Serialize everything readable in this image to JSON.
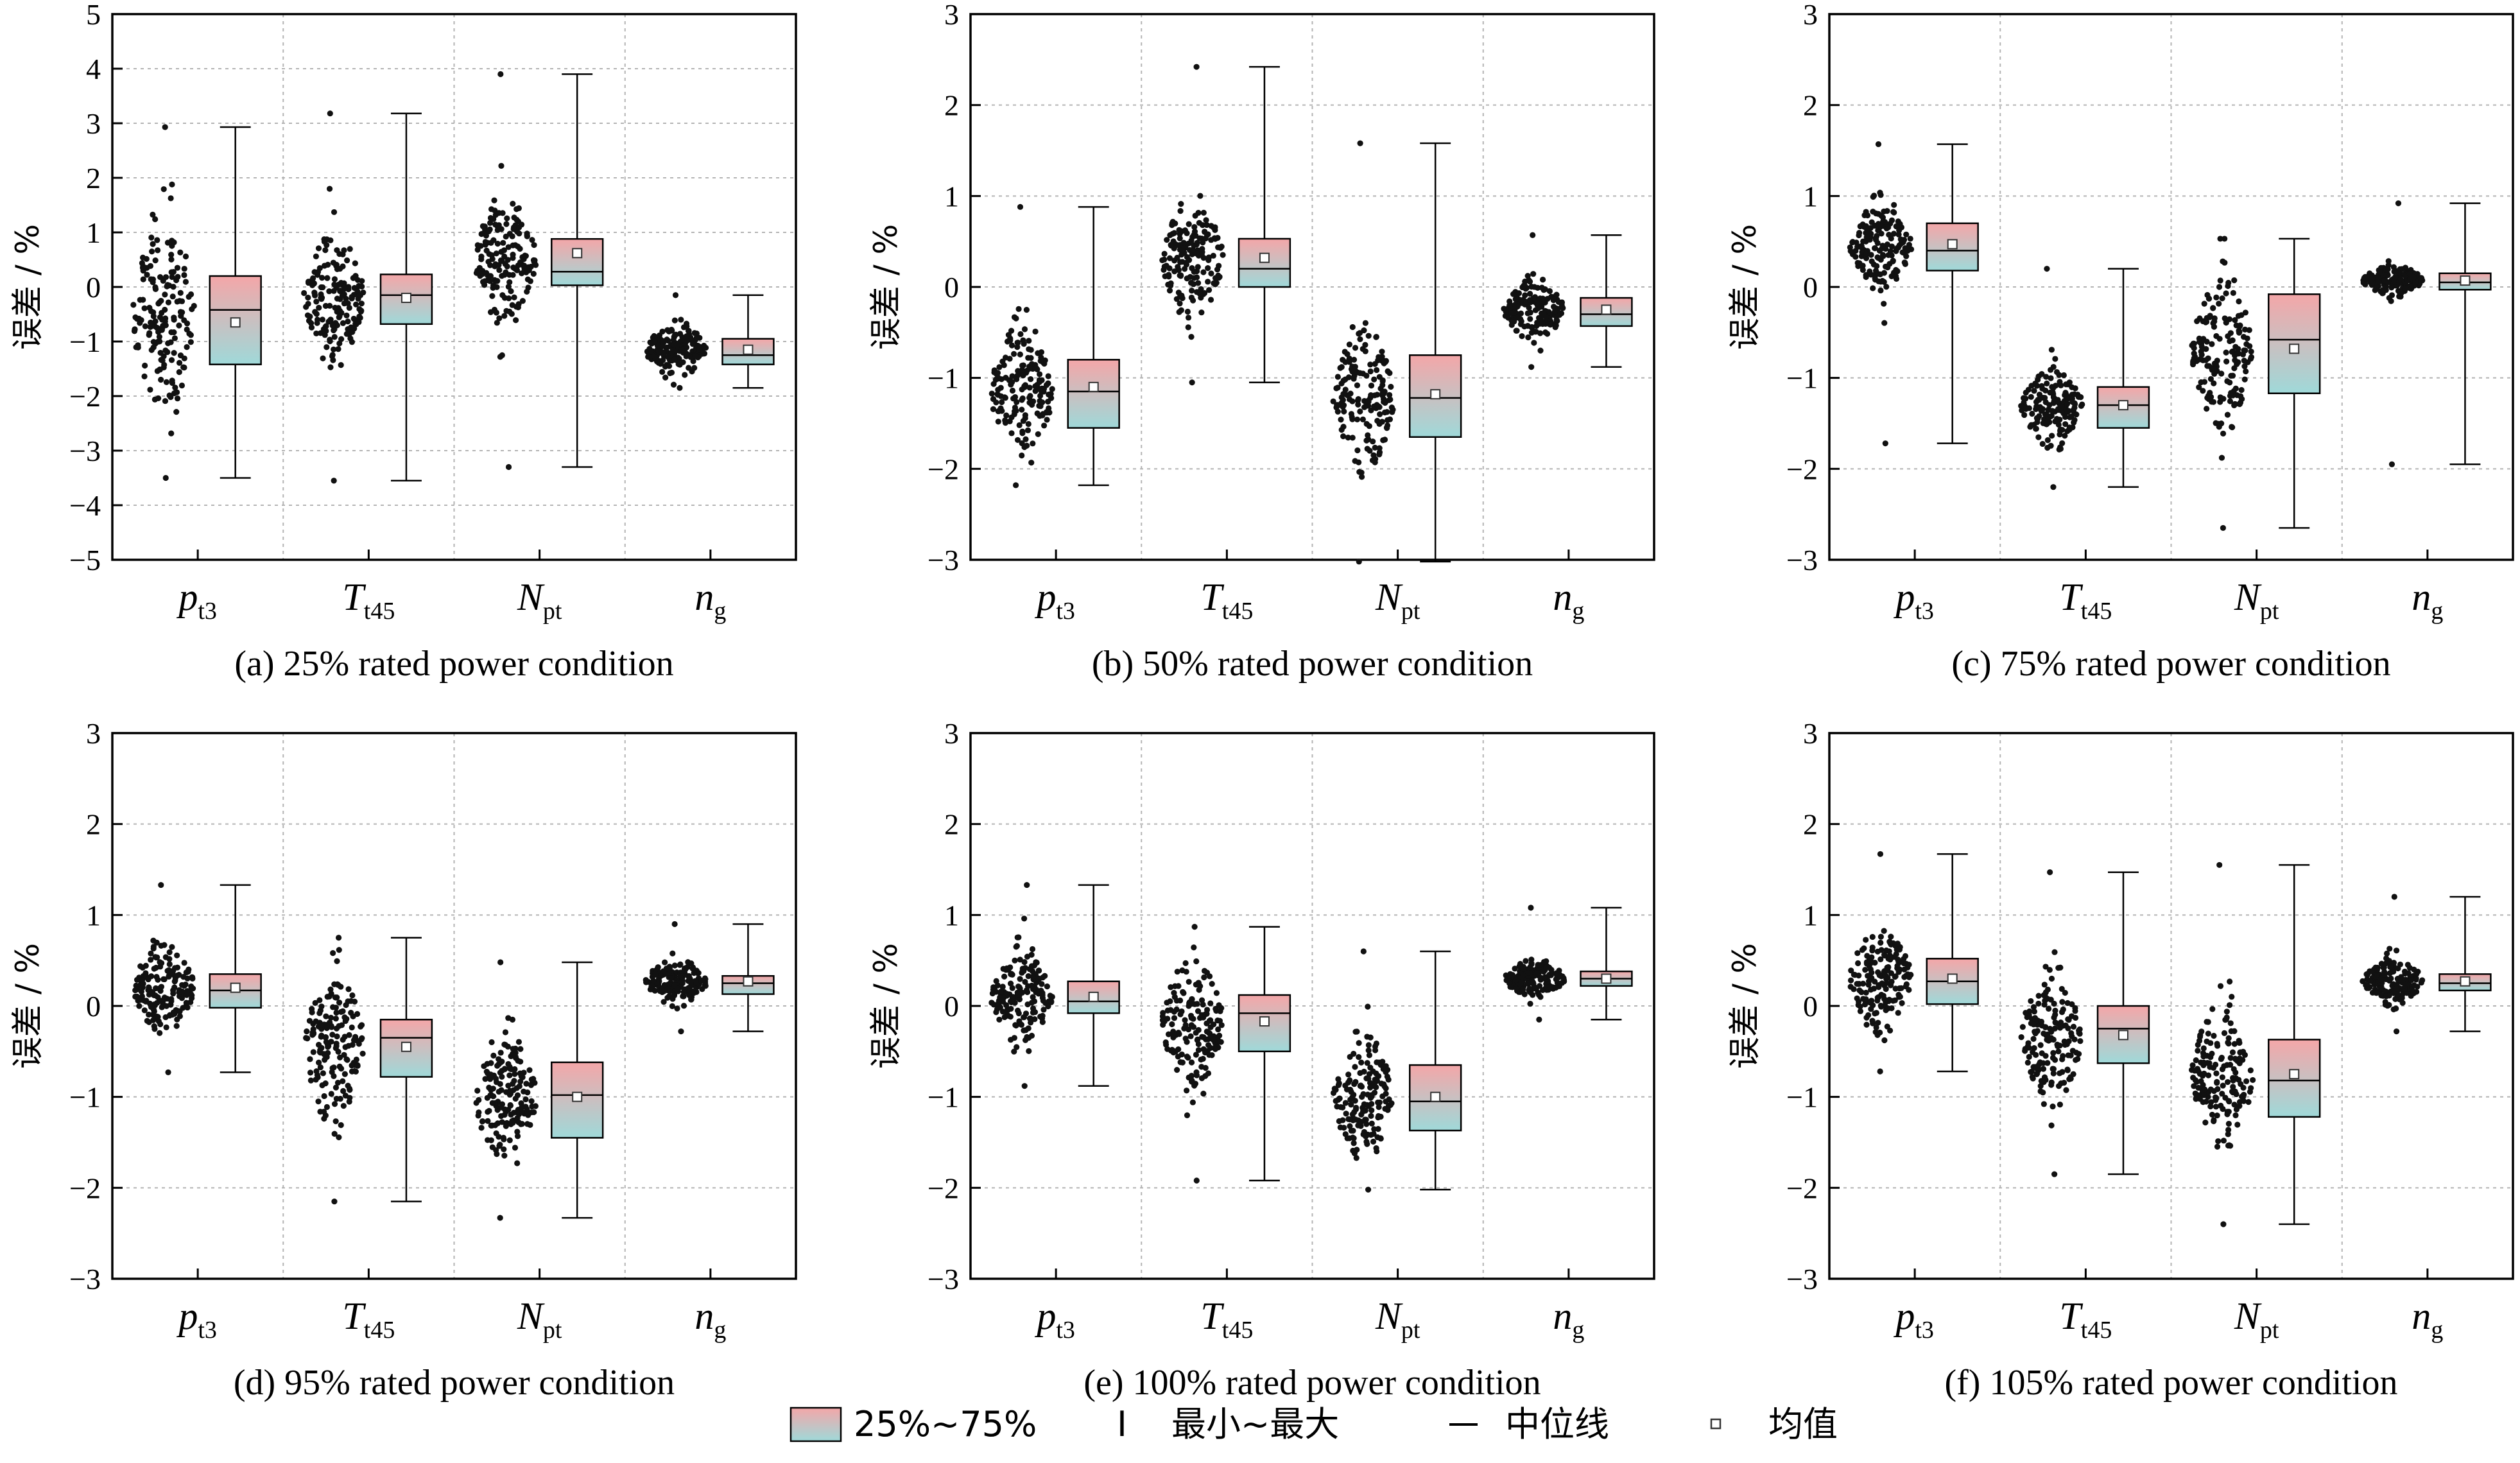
{
  "chart_data": [
    {
      "type": "box",
      "caption": "(a) 25% rated power condition",
      "ylabel": "误差 / %",
      "ylim": [
        -5,
        5
      ],
      "yticks": [
        -5,
        -4,
        -3,
        -2,
        -1,
        0,
        1,
        2,
        3,
        4,
        5
      ],
      "categories": [
        {
          "main": "p",
          "sub": "t3"
        },
        {
          "main": "T",
          "sub": "t45"
        },
        {
          "main": "N",
          "sub": "pt"
        },
        {
          "main": "n",
          "sub": "g"
        }
      ],
      "boxes": [
        {
          "min": -3.5,
          "q1": -1.42,
          "median": -0.42,
          "q3": 0.2,
          "max": 2.93,
          "mean": -0.65,
          "scatter_center": -0.5,
          "scatter_spread": 1.2
        },
        {
          "min": -3.55,
          "q1": -0.68,
          "median": -0.15,
          "q3": 0.23,
          "max": 3.18,
          "mean": -0.2,
          "scatter_center": -0.2,
          "scatter_spread": 0.7
        },
        {
          "min": -3.3,
          "q1": 0.03,
          "median": 0.28,
          "q3": 0.88,
          "max": 3.9,
          "mean": 0.62,
          "scatter_center": 0.5,
          "scatter_spread": 0.7
        },
        {
          "min": -1.85,
          "q1": -1.42,
          "median": -1.25,
          "q3": -0.95,
          "max": -0.15,
          "mean": -1.15,
          "scatter_center": -1.15,
          "scatter_spread": 0.3
        }
      ]
    },
    {
      "type": "box",
      "caption": "(b) 50% rated power condition",
      "ylabel": "误差 / %",
      "ylim": [
        -3,
        3
      ],
      "yticks": [
        -3,
        -2,
        -1,
        0,
        1,
        2,
        3
      ],
      "categories": [
        {
          "main": "p",
          "sub": "t3"
        },
        {
          "main": "T",
          "sub": "t45"
        },
        {
          "main": "N",
          "sub": "pt"
        },
        {
          "main": "n",
          "sub": "g"
        }
      ],
      "boxes": [
        {
          "min": -2.18,
          "q1": -1.55,
          "median": -1.15,
          "q3": -0.8,
          "max": 0.88,
          "mean": -1.1,
          "scatter_center": -1.15,
          "scatter_spread": 0.45
        },
        {
          "min": -1.05,
          "q1": 0.0,
          "median": 0.2,
          "q3": 0.53,
          "max": 2.42,
          "mean": 0.32,
          "scatter_center": 0.3,
          "scatter_spread": 0.4
        },
        {
          "min": -3.02,
          "q1": -1.65,
          "median": -1.22,
          "q3": -0.75,
          "max": 1.58,
          "mean": -1.18,
          "scatter_center": -1.2,
          "scatter_spread": 0.5
        },
        {
          "min": -0.88,
          "q1": -0.43,
          "median": -0.3,
          "q3": -0.12,
          "max": 0.57,
          "mean": -0.25,
          "scatter_center": -0.25,
          "scatter_spread": 0.2
        }
      ]
    },
    {
      "type": "box",
      "caption": "(c) 75% rated power condition",
      "ylabel": "误差 / %",
      "ylim": [
        -3,
        3
      ],
      "yticks": [
        -3,
        -2,
        -1,
        0,
        1,
        2,
        3
      ],
      "categories": [
        {
          "main": "p",
          "sub": "t3"
        },
        {
          "main": "T",
          "sub": "t45"
        },
        {
          "main": "N",
          "sub": "pt"
        },
        {
          "main": "n",
          "sub": "g"
        }
      ],
      "boxes": [
        {
          "min": -1.72,
          "q1": 0.18,
          "median": 0.4,
          "q3": 0.7,
          "max": 1.57,
          "mean": 0.47,
          "scatter_center": 0.45,
          "scatter_spread": 0.3
        },
        {
          "min": -2.2,
          "q1": -1.55,
          "median": -1.3,
          "q3": -1.1,
          "max": 0.2,
          "mean": -1.3,
          "scatter_center": -1.3,
          "scatter_spread": 0.25
        },
        {
          "min": -2.65,
          "q1": -1.17,
          "median": -0.58,
          "q3": -0.08,
          "max": 0.53,
          "mean": -0.68,
          "scatter_center": -0.7,
          "scatter_spread": 0.5
        },
        {
          "min": -1.95,
          "q1": -0.03,
          "median": 0.05,
          "q3": 0.15,
          "max": 0.92,
          "mean": 0.07,
          "scatter_center": 0.07,
          "scatter_spread": 0.1
        }
      ]
    },
    {
      "type": "box",
      "caption": "(d) 95% rated power condition",
      "ylabel": "误差 / %",
      "ylim": [
        -3,
        3
      ],
      "yticks": [
        -3,
        -2,
        -1,
        0,
        1,
        2,
        3
      ],
      "categories": [
        {
          "main": "p",
          "sub": "t3"
        },
        {
          "main": "T",
          "sub": "t45"
        },
        {
          "main": "N",
          "sub": "pt"
        },
        {
          "main": "n",
          "sub": "g"
        }
      ],
      "boxes": [
        {
          "min": -0.73,
          "q1": -0.02,
          "median": 0.17,
          "q3": 0.35,
          "max": 1.33,
          "mean": 0.2,
          "scatter_center": 0.2,
          "scatter_spread": 0.3
        },
        {
          "min": -2.15,
          "q1": -0.78,
          "median": -0.35,
          "q3": -0.15,
          "max": 0.75,
          "mean": -0.45,
          "scatter_center": -0.45,
          "scatter_spread": 0.5
        },
        {
          "min": -2.33,
          "q1": -1.45,
          "median": -0.98,
          "q3": -0.62,
          "max": 0.48,
          "mean": -1.0,
          "scatter_center": -1.0,
          "scatter_spread": 0.45
        },
        {
          "min": -0.28,
          "q1": 0.13,
          "median": 0.25,
          "q3": 0.33,
          "max": 0.9,
          "mean": 0.27,
          "scatter_center": 0.27,
          "scatter_spread": 0.15
        }
      ]
    },
    {
      "type": "box",
      "caption": "(e) 100% rated power condition",
      "ylabel": "误差 / %",
      "ylim": [
        -3,
        3
      ],
      "yticks": [
        -3,
        -2,
        -1,
        0,
        1,
        2,
        3
      ],
      "categories": [
        {
          "main": "p",
          "sub": "t3"
        },
        {
          "main": "T",
          "sub": "t45"
        },
        {
          "main": "N",
          "sub": "pt"
        },
        {
          "main": "n",
          "sub": "g"
        }
      ],
      "boxes": [
        {
          "min": -0.88,
          "q1": -0.08,
          "median": 0.05,
          "q3": 0.27,
          "max": 1.33,
          "mean": 0.1,
          "scatter_center": 0.1,
          "scatter_spread": 0.3
        },
        {
          "min": -1.92,
          "q1": -0.5,
          "median": -0.08,
          "q3": 0.12,
          "max": 0.87,
          "mean": -0.17,
          "scatter_center": -0.2,
          "scatter_spread": 0.45
        },
        {
          "min": -2.02,
          "q1": -1.37,
          "median": -1.05,
          "q3": -0.65,
          "max": 0.6,
          "mean": -1.0,
          "scatter_center": -1.0,
          "scatter_spread": 0.4
        },
        {
          "min": -0.15,
          "q1": 0.22,
          "median": 0.3,
          "q3": 0.38,
          "max": 1.08,
          "mean": 0.3,
          "scatter_center": 0.3,
          "scatter_spread": 0.12
        }
      ]
    },
    {
      "type": "box",
      "caption": "(f) 105% rated power condition",
      "ylabel": "误差 / %",
      "ylim": [
        -3,
        3
      ],
      "yticks": [
        -3,
        -2,
        -1,
        0,
        1,
        2,
        3
      ],
      "categories": [
        {
          "main": "p",
          "sub": "t3"
        },
        {
          "main": "T",
          "sub": "t45"
        },
        {
          "main": "N",
          "sub": "pt"
        },
        {
          "main": "n",
          "sub": "g"
        }
      ],
      "boxes": [
        {
          "min": -0.72,
          "q1": 0.02,
          "median": 0.27,
          "q3": 0.52,
          "max": 1.67,
          "mean": 0.3,
          "scatter_center": 0.3,
          "scatter_spread": 0.35
        },
        {
          "min": -1.85,
          "q1": -0.63,
          "median": -0.25,
          "q3": 0.0,
          "max": 1.47,
          "mean": -0.32,
          "scatter_center": -0.35,
          "scatter_spread": 0.45
        },
        {
          "min": -2.4,
          "q1": -1.22,
          "median": -0.82,
          "q3": -0.37,
          "max": 1.55,
          "mean": -0.75,
          "scatter_center": -0.75,
          "scatter_spread": 0.5
        },
        {
          "min": -0.28,
          "q1": 0.17,
          "median": 0.25,
          "q3": 0.35,
          "max": 1.2,
          "mean": 0.27,
          "scatter_center": 0.27,
          "scatter_spread": 0.15
        }
      ]
    }
  ],
  "legend": {
    "iqr_label": "25%~75%",
    "range_symbol": "I",
    "range_label": "最小~最大",
    "median_label": "中位线",
    "mean_label": "均值"
  },
  "colors": {
    "box_top": "#f4a6a8",
    "box_bottom": "#9fd9d9",
    "grid": "#b3b3b3",
    "scatter": "#111111"
  }
}
